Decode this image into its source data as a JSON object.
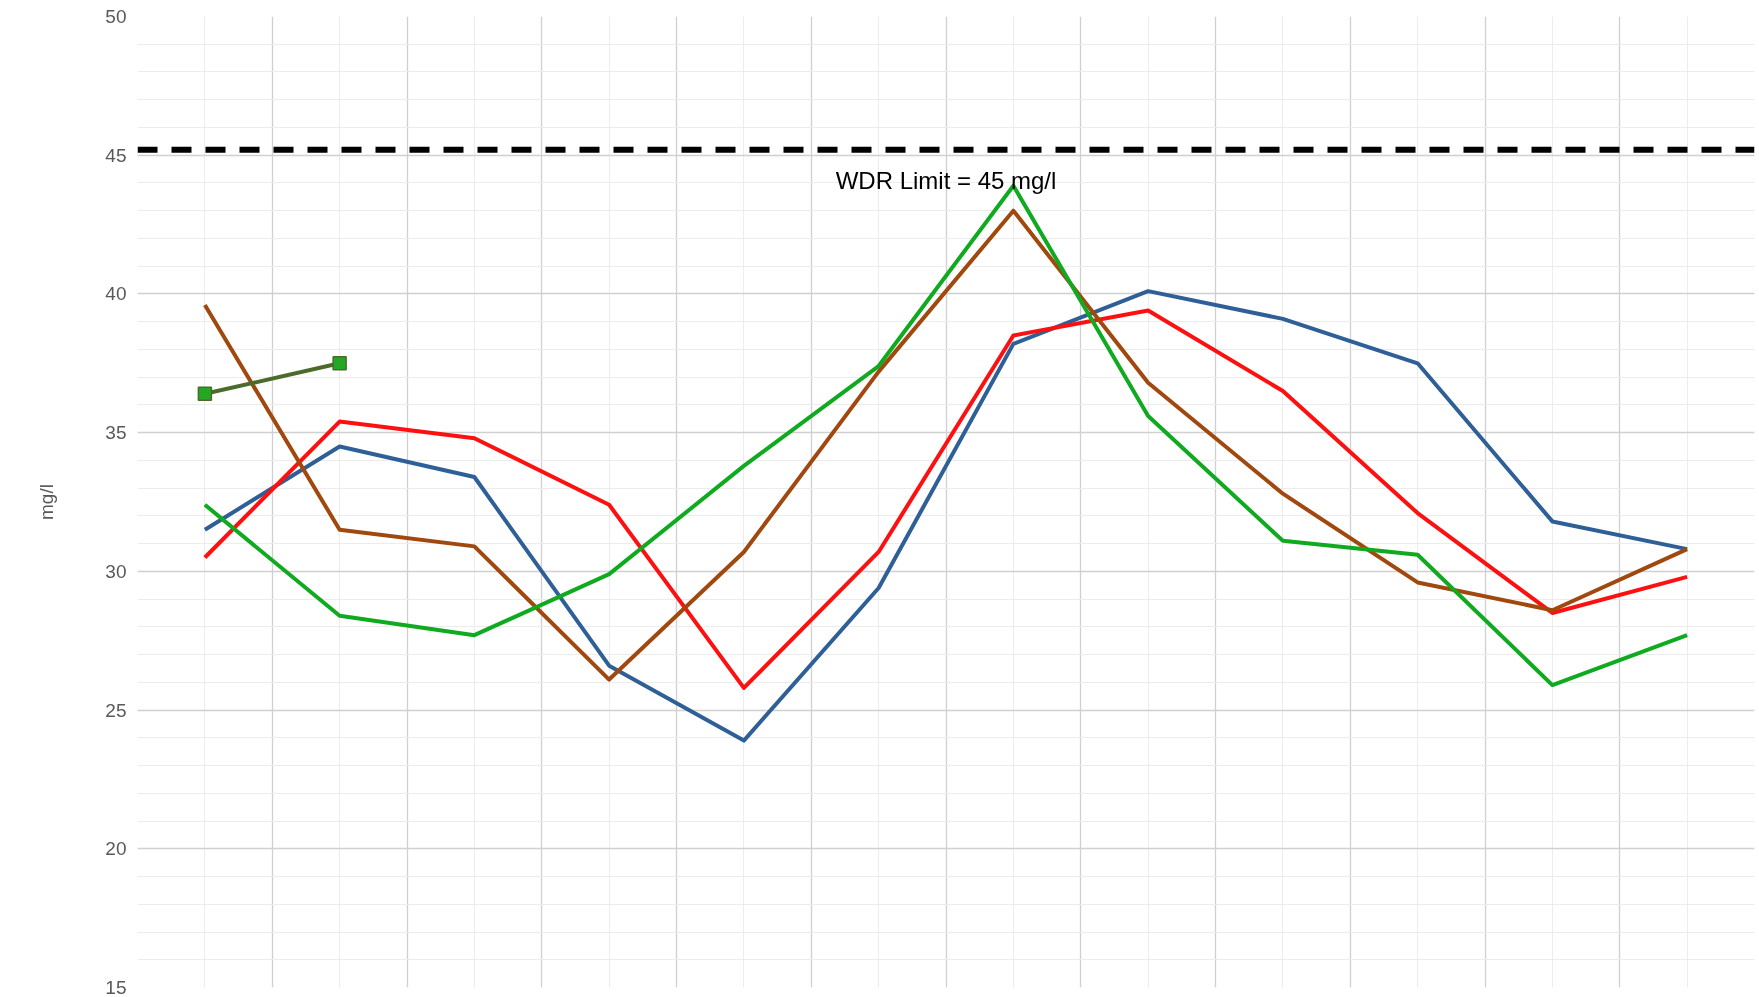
{
  "chart_data": {
    "type": "line",
    "ylabel": "mg/l",
    "categories": [
      null,
      null,
      null,
      null,
      null,
      null,
      null,
      null,
      null,
      null,
      null,
      null
    ],
    "ylim": [
      15,
      50
    ],
    "yticks": [
      15,
      20,
      25,
      30,
      35,
      40,
      45,
      50
    ],
    "grid": true,
    "line_style": "solid",
    "series": [
      {
        "color": "#2e5f96",
        "values": [
          31.5,
          34.5,
          33.4,
          26.6,
          23.9,
          29.4,
          38.2,
          40.1,
          39.1,
          37.5,
          31.8,
          30.8
        ]
      },
      {
        "color": "#ff1010",
        "values": [
          30.5,
          35.4,
          34.8,
          32.4,
          25.8,
          30.7,
          38.5,
          39.4,
          36.5,
          32.1,
          28.5,
          29.8
        ]
      },
      {
        "color": "#a0480e",
        "values": [
          39.6,
          31.5,
          30.9,
          26.1,
          30.7,
          37.2,
          43.0,
          36.8,
          32.8,
          29.6,
          28.6,
          30.8
        ]
      },
      {
        "color": "#10aa20",
        "values": [
          32.4,
          28.4,
          27.7,
          29.9,
          33.8,
          37.4,
          43.9,
          35.6,
          31.1,
          30.6,
          25.9,
          27.7
        ]
      },
      {
        "color": "#4a6b2a",
        "marker": "square",
        "values": [
          36.4,
          37.5,
          null,
          null,
          null,
          null,
          null,
          null,
          null,
          null,
          null,
          null
        ]
      }
    ],
    "ref_lines": [
      {
        "axis": "y",
        "value": 45.2,
        "label": "WDR Limit = 45 mg/l",
        "color": "#000000",
        "line_style": "dashed"
      }
    ]
  }
}
